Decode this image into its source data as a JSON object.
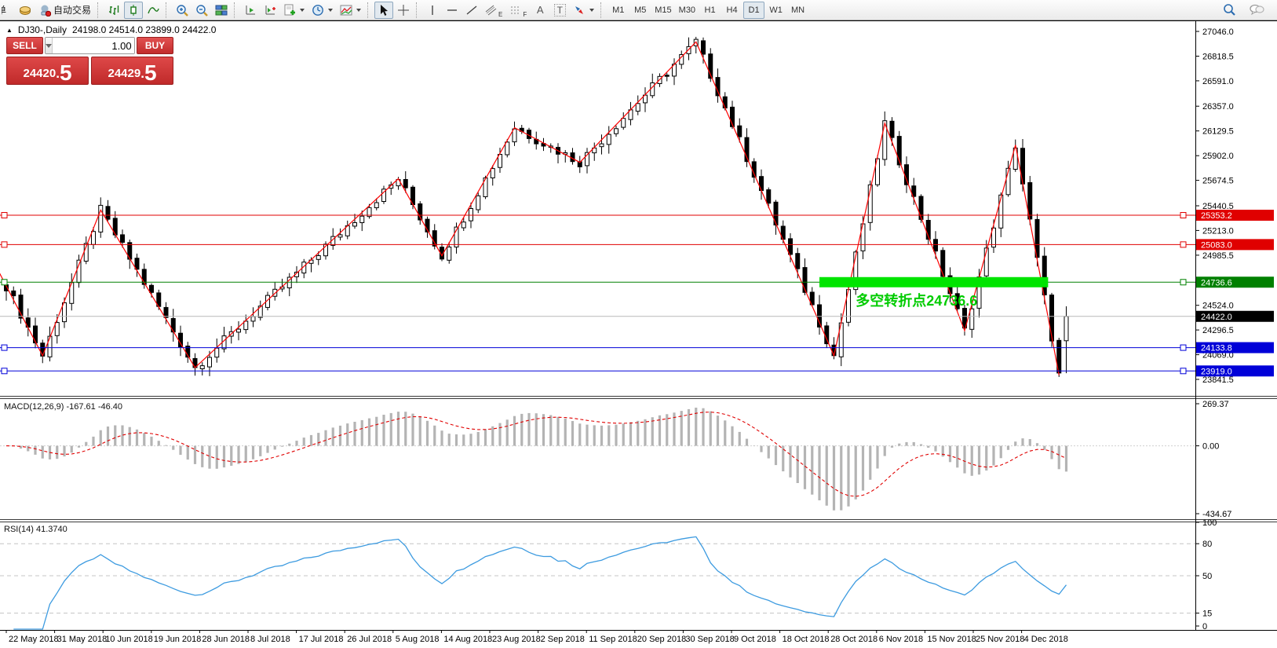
{
  "toolbar": {
    "order_text": "单",
    "autotrade_label": "自动交易",
    "channel_sub": "E",
    "fibo_sub": "F",
    "text_tool_label": "A",
    "label_tool_label": "T",
    "timeframes": [
      "M1",
      "M5",
      "M15",
      "M30",
      "H1",
      "H4",
      "D1",
      "W1",
      "MN"
    ],
    "active_timeframe": "D1"
  },
  "chart": {
    "marker": "▲",
    "symbol_period": "DJ30-,Daily",
    "ohlc_text": "24198.0 24514.0 23899.0 24422.0"
  },
  "trade_panel": {
    "sell_label": "SELL",
    "buy_label": "BUY",
    "volume": "1.00",
    "sell_int": "24420",
    "sell_dot": ".",
    "sell_frac": "5",
    "buy_int": "24429",
    "buy_dot": ".",
    "buy_frac": "5"
  },
  "indicators": {
    "macd_label": "MACD(12,26,9) -167.61 -46.40",
    "rsi_label": "RSI(14) 41.3740"
  },
  "chart_data": [
    {
      "type": "candlestick",
      "title": "DJ30-,Daily",
      "trading_days": 147,
      "last_candle": {
        "open": 24198.0,
        "high": 24514.0,
        "low": 23899.0,
        "close": 24422.0
      },
      "price_axis_ticks": [
        "27046.0",
        "26818.5",
        "26591.0",
        "26357.0",
        "26129.5",
        "25902.0",
        "25674.5",
        "25440.5",
        "25213.0",
        "24985.5",
        "24524.0",
        "24296.5",
        "24069.0",
        "23841.5"
      ],
      "price_range": [
        23791,
        27140
      ],
      "zigzag_points": [
        [
          -1,
          24830
        ],
        [
          5,
          24060
        ],
        [
          13,
          25400
        ],
        [
          26,
          23950
        ],
        [
          54,
          25690
        ],
        [
          60,
          24980
        ],
        [
          70,
          26160
        ],
        [
          79,
          25840
        ],
        [
          95,
          26950
        ],
        [
          114,
          24060
        ],
        [
          121,
          26200
        ],
        [
          132,
          24290
        ],
        [
          139,
          26000
        ],
        [
          145,
          23880
        ]
      ],
      "levels": [
        {
          "price": 25353.2,
          "label": "25353.2",
          "color": "#e00000",
          "type": "resistance"
        },
        {
          "price": 25083.0,
          "label": "25083.0",
          "color": "#e00000",
          "type": "resistance"
        },
        {
          "price": 24736.6,
          "label": "24736.6",
          "color": "#008000",
          "type": "pivot"
        },
        {
          "price": 24422.0,
          "label": "24422.0",
          "color": "#000000",
          "type": "current"
        },
        {
          "price": 24133.8,
          "label": "24133.8",
          "color": "#0000d8",
          "type": "support"
        },
        {
          "price": 23919.0,
          "label": "23919.0",
          "color": "#0000d8",
          "type": "support"
        }
      ],
      "highlight_bar": {
        "from_day": 112,
        "to_day": 143.5,
        "price": 24736.6,
        "color": "#00e400"
      },
      "annotation": {
        "text": "多空转折点24736.6",
        "color": "#00cc00",
        "day": 117,
        "price": 24520
      },
      "x_axis_dates": [
        "22 May 2018",
        "31 May 2018",
        "10 Jun 2018",
        "19 Jun 2018",
        "28 Jun 2018",
        "8 Jul 2018",
        "17 Jul 2018",
        "26 Jul 2018",
        "5 Aug 2018",
        "14 Aug 2018",
        "23 Aug 2018",
        "2 Sep 2018",
        "11 Sep 2018",
        "20 Sep 2018",
        "30 Sep 2018",
        "9 Oct 2018",
        "18 Oct 2018",
        "28 Oct 2018",
        "6 Nov 2018",
        "15 Nov 2018",
        "25 Nov 2018",
        "4 Dec 2018"
      ]
    },
    {
      "type": "macd",
      "params": [
        12,
        26,
        9
      ],
      "main_value": -167.61,
      "signal_value": -46.4,
      "axis_ticks": [
        "269.37",
        "0.00",
        "-434.67"
      ],
      "range": [
        -434.67,
        269.37
      ],
      "histogram_color": "#b4b4b4",
      "signal_color": "#e00000"
    },
    {
      "type": "rsi",
      "period": 14,
      "value": 41.374,
      "axis_ticks": [
        "100",
        "80",
        "50",
        "15",
        "0"
      ],
      "levels": [
        80,
        50,
        15
      ],
      "range": [
        0,
        100
      ],
      "line_color": "#3d9be0"
    }
  ]
}
